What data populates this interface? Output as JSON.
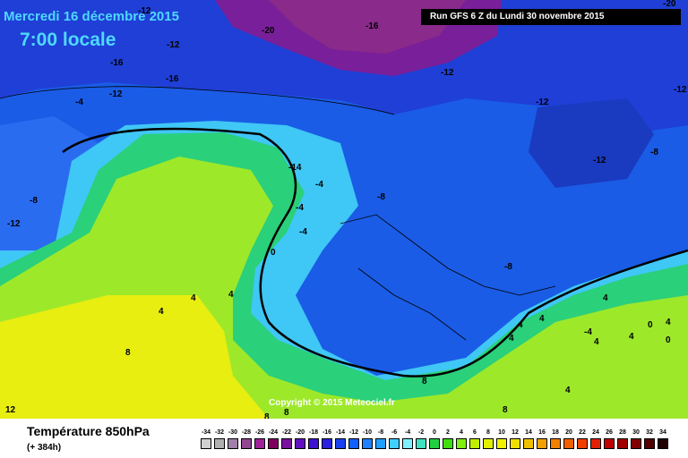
{
  "header": {
    "date_line": "Mercredi 16 décembre 2015",
    "time_line": "7:00 locale",
    "run_info": "Run GFS 6 Z du Lundi 30 novembre 2015"
  },
  "map": {
    "copyright": "Copyright © 2015 Meteociel.fr",
    "labels": [
      "-12",
      "-20",
      "-16",
      "-20",
      "-12",
      "-16",
      "-16",
      "-12",
      "-12",
      "-4",
      "-12",
      "-12",
      "-8",
      "-12",
      "-14",
      "-8",
      "-12",
      "-4",
      "-8",
      "-4",
      "0",
      "-4",
      "-8",
      "4",
      "4",
      "4",
      "8",
      "4",
      "4",
      "4",
      "-4",
      "0",
      "4",
      "0",
      "4",
      "4",
      "4",
      "4",
      "8",
      "8",
      "8",
      "8",
      "12"
    ]
  },
  "legend": {
    "title": "Température 850hPa",
    "subtitle": "(+ 384h)",
    "scale_labels": [
      "-34",
      "-32",
      "-30",
      "-28",
      "-26",
      "-24",
      "-22",
      "-20",
      "-18",
      "-16",
      "-14",
      "-12",
      "-10",
      "-8",
      "-6",
      "-4",
      "-2",
      "0",
      "2",
      "4",
      "6",
      "8",
      "10",
      "12",
      "14",
      "16",
      "18",
      "20",
      "22",
      "24",
      "26",
      "28",
      "30",
      "32",
      "34"
    ],
    "scale_colors": [
      "#d0d0d0",
      "#b0b0b0",
      "#a080a8",
      "#904890",
      "#a0209a",
      "#800060",
      "#7a10a0",
      "#6010c0",
      "#4010d0",
      "#2a20e0",
      "#1a40f0",
      "#1060ff",
      "#2080ff",
      "#20a0ff",
      "#40d0ff",
      "#80f0ff",
      "#40e0c0",
      "#20d040",
      "#40e010",
      "#80f010",
      "#c0f000",
      "#e0f000",
      "#f0f000",
      "#f0e000",
      "#f0c000",
      "#f0a000",
      "#f08000",
      "#f06000",
      "#f04000",
      "#e02000",
      "#c00000",
      "#a00000",
      "#800000",
      "#500000",
      "#200000"
    ]
  }
}
